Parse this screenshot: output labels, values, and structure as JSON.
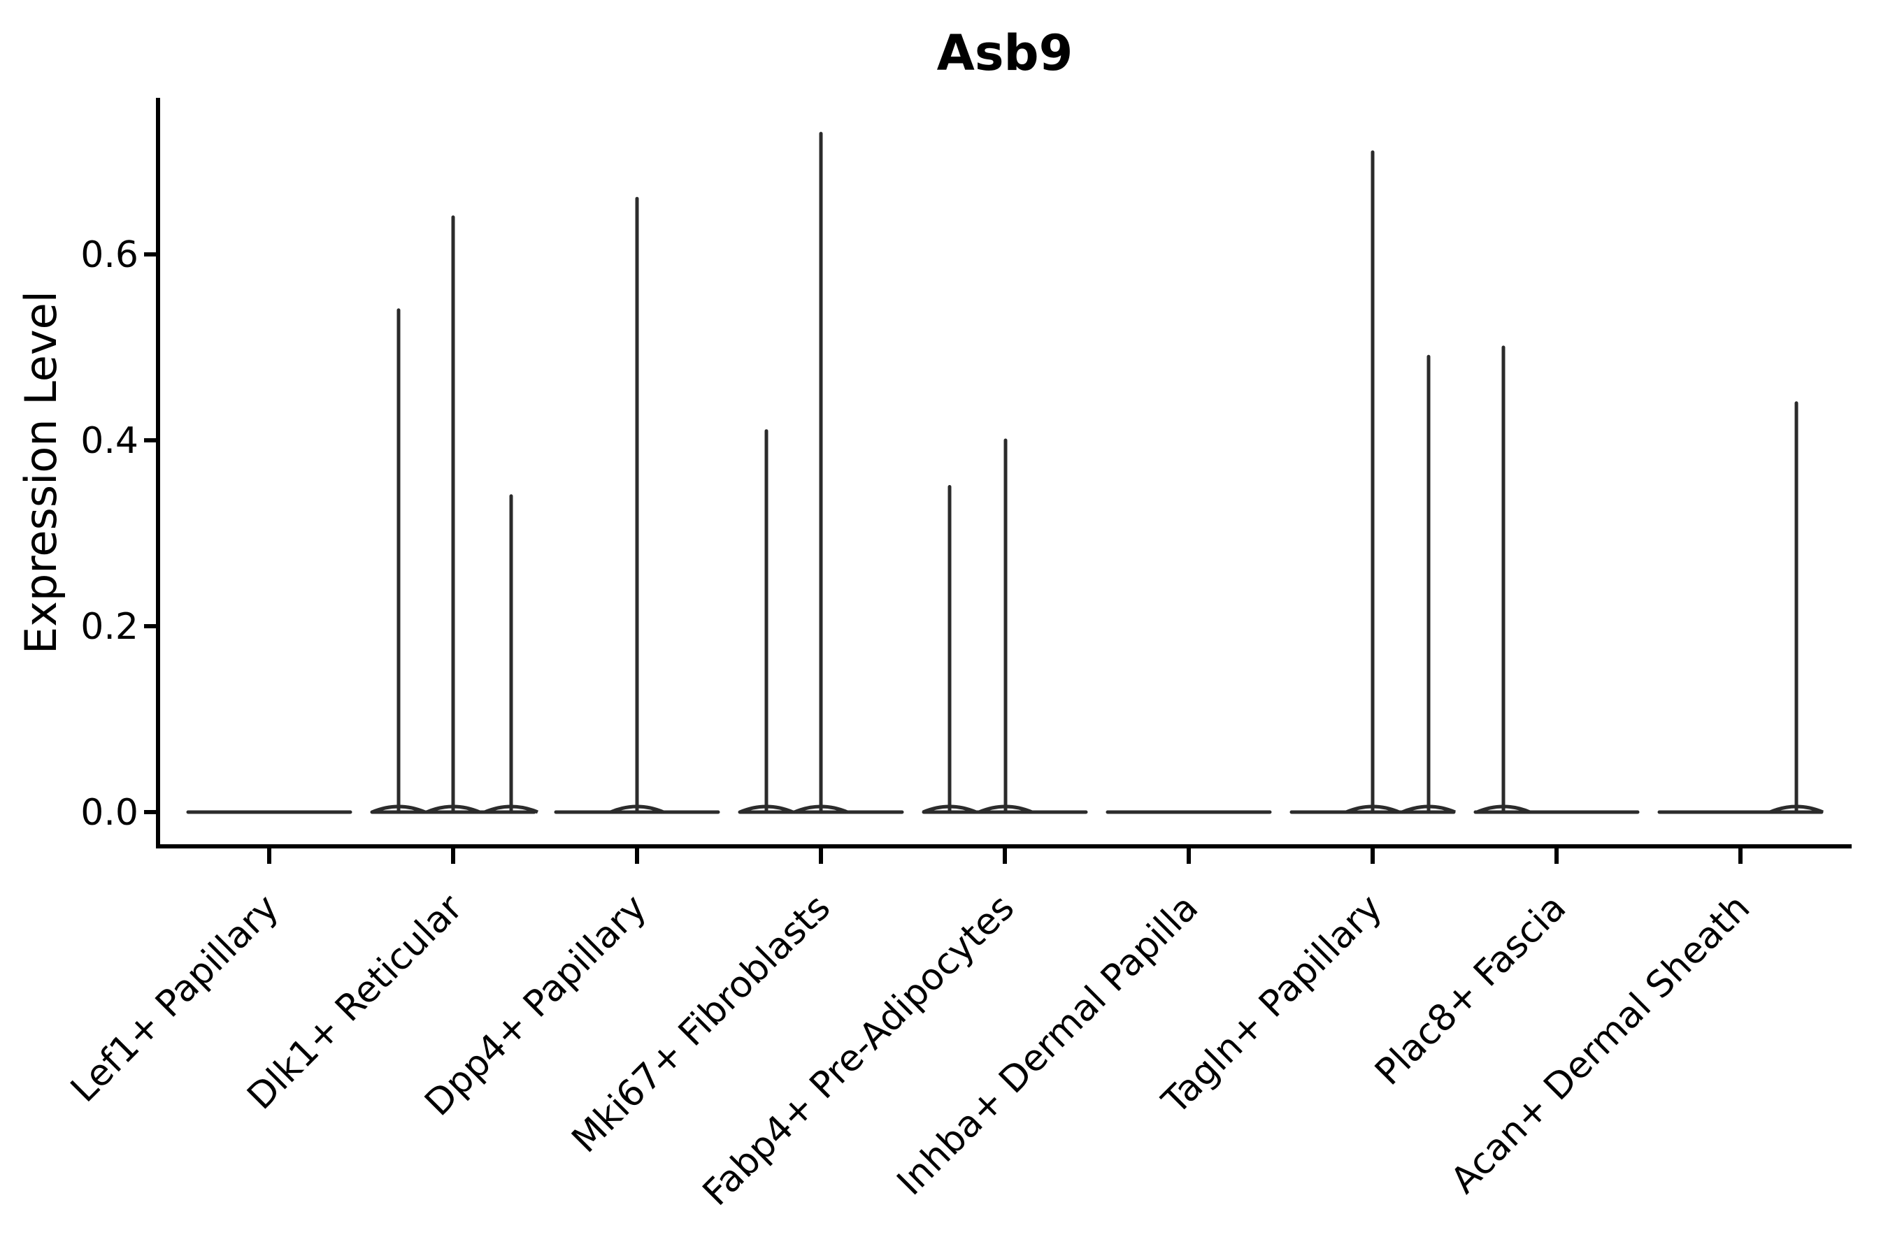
{
  "title": "Asb9",
  "chart_data": {
    "type": "violin",
    "title": "Asb9",
    "ylabel": "Expression Level",
    "xlabel": "",
    "ylim": [
      0,
      0.768
    ],
    "grid": false,
    "legend_position": "none",
    "line_color": "#2b2b2b",
    "axis_color": "#000000",
    "text_color": "#000000",
    "background": "#ffffff",
    "yticks": [
      {
        "value": 0.0,
        "label": "0.0"
      },
      {
        "value": 0.2,
        "label": "0.2"
      },
      {
        "value": 0.4,
        "label": "0.4"
      },
      {
        "value": 0.6,
        "label": "0.6"
      }
    ],
    "groups": [
      {
        "label": "Lef1+ Papillary",
        "spikes": []
      },
      {
        "label": "Dlk1+ Reticular",
        "spikes": [
          {
            "offset": -78,
            "value": 0.54
          },
          {
            "offset": 0,
            "value": 0.64
          },
          {
            "offset": 83,
            "value": 0.34
          }
        ]
      },
      {
        "label": "Dpp4+ Papillary",
        "spikes": [
          {
            "offset": 0,
            "value": 0.66
          }
        ]
      },
      {
        "label": "Mki67+ Fibroblasts",
        "spikes": [
          {
            "offset": -78,
            "value": 0.41
          },
          {
            "offset": 0,
            "value": 0.73
          }
        ]
      },
      {
        "label": "Fabp4+ Pre-Adipocytes",
        "spikes": [
          {
            "offset": -79,
            "value": 0.35
          },
          {
            "offset": 1,
            "value": 0.4
          }
        ]
      },
      {
        "label": "Inhba+ Dermal Papilla",
        "spikes": []
      },
      {
        "label": "Tagln+ Papillary",
        "spikes": [
          {
            "offset": 0,
            "value": 0.71
          },
          {
            "offset": 80,
            "value": 0.49
          }
        ]
      },
      {
        "label": "Plac8+ Fascia",
        "spikes": [
          {
            "offset": -76,
            "value": 0.5
          }
        ]
      },
      {
        "label": "Acan+ Dermal Sheath",
        "spikes": [
          {
            "offset": 80,
            "value": 0.44
          }
        ]
      }
    ]
  }
}
